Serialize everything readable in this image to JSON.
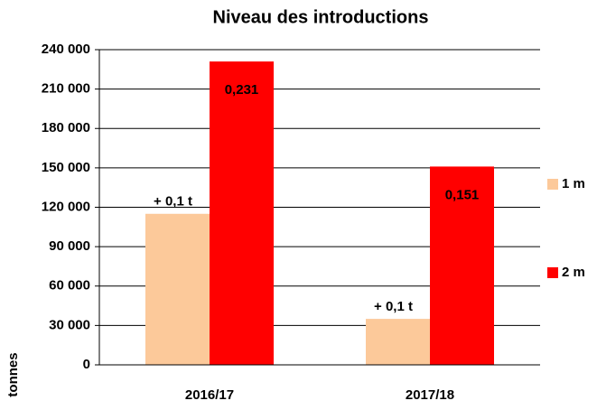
{
  "chart_data": {
    "type": "bar",
    "title": "Niveau des introductions",
    "y_label": "tonnes",
    "categories": [
      "2016/17",
      "2017/18"
    ],
    "series": [
      {
        "name": "1 m",
        "color": "#fcc99a",
        "values": [
          115000,
          35000
        ],
        "annotations": [
          "+ 0,1 t",
          "+ 0,1 t"
        ]
      },
      {
        "name": "2 m",
        "color": "#ff0000",
        "values": [
          231000,
          151000
        ],
        "value_labels": [
          "0,231",
          "0,151"
        ]
      }
    ],
    "ylim": [
      0,
      240000
    ],
    "yticks": [
      0,
      {
        "value": 30000,
        "label": "30 000"
      },
      {
        "value": 60000,
        "label": "60 000"
      },
      {
        "value": 90000,
        "label": "90 000"
      },
      {
        "value": 120000,
        "label": "120 000"
      },
      {
        "value": 150000,
        "label": "150 000"
      },
      {
        "value": 180000,
        "label": "180 000"
      },
      {
        "value": 210000,
        "label": "210 000"
      },
      {
        "value": 240000,
        "label": "240 000"
      }
    ],
    "grid": true,
    "legend": "right"
  }
}
